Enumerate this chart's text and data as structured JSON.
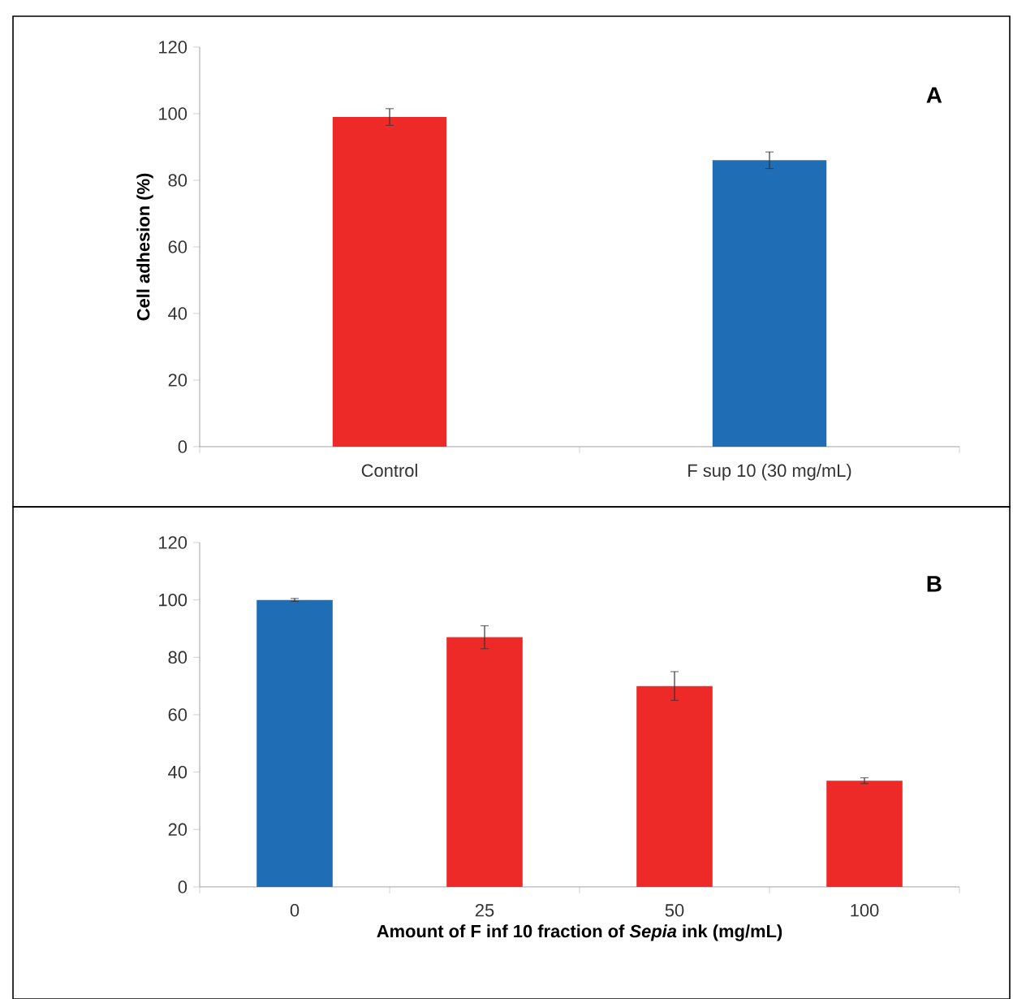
{
  "chart_data": [
    {
      "type": "bar",
      "title": "A",
      "ylabel": "Cell  adhesion (%)",
      "categories": [
        "Control",
        "F sup 10 (30 mg/mL)"
      ],
      "values": [
        99,
        86
      ],
      "errors": [
        2.5,
        2.5
      ],
      "colors": [
        "#ee2a28",
        "#1f6db5"
      ],
      "ylim": [
        0,
        120
      ],
      "yticks": [
        0,
        20,
        40,
        60,
        80,
        100,
        120
      ]
    },
    {
      "type": "bar",
      "title": "B",
      "xlabel": "Amount of F inf 10 fraction of *Sepia* ink (mg/mL)",
      "categories": [
        "0",
        "25",
        "50",
        "100"
      ],
      "values": [
        100,
        87,
        70,
        37
      ],
      "errors": [
        0.5,
        4,
        5,
        1
      ],
      "colors": [
        "#1f6db5",
        "#ee2a28",
        "#ee2a28",
        "#ee2a28"
      ],
      "ylim": [
        0,
        120
      ],
      "yticks": [
        0,
        20,
        40,
        60,
        80,
        100,
        120
      ]
    }
  ]
}
